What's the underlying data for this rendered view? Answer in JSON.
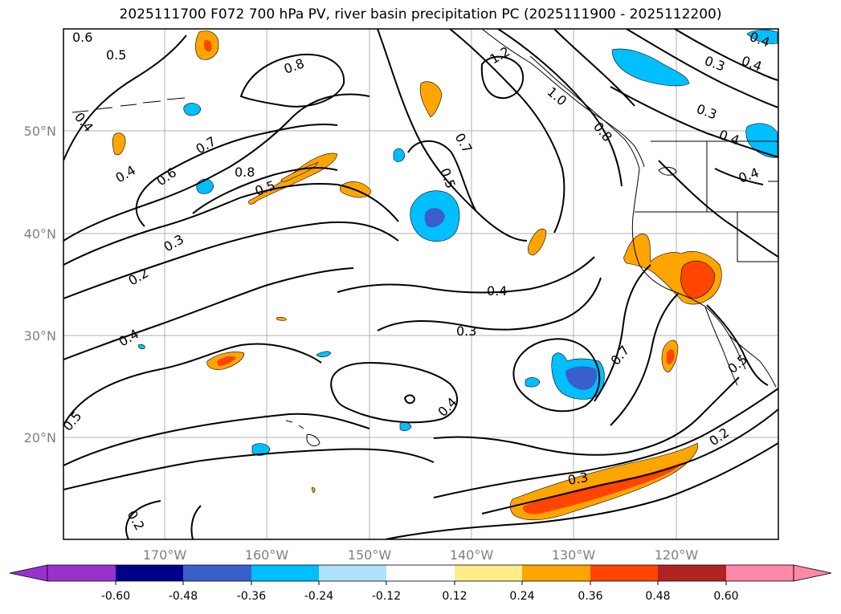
{
  "title": "2025111700 F072 700 hPa PV, river basin precipitation PC (2025111900 - 2025112200)",
  "map": {
    "lat_labels": [
      "50°N",
      "40°N",
      "30°N",
      "20°N"
    ],
    "lon_labels": [
      "170°W",
      "160°W",
      "150°W",
      "140°W",
      "130°W",
      "120°W"
    ],
    "contour_labels": [
      "0.6",
      "0.5",
      "0.4",
      "0.8",
      "1.2",
      "1.0",
      "0.7",
      "0.5",
      "0.8",
      "0.7",
      "0.6",
      "0.4",
      "0.5",
      "0.3",
      "0.2",
      "0.3",
      "0.4",
      "0.4",
      "0.3",
      "0.4",
      "0.7",
      "0.5",
      "0.4",
      "0.5",
      "0.2",
      "0.3",
      "0.2",
      "0.3",
      "0.4",
      "0.4",
      "0.4",
      "0.8"
    ]
  },
  "colorbar": {
    "ticks": [
      "-0.60",
      "-0.48",
      "-0.36",
      "-0.24",
      "-0.12",
      "0.12",
      "0.24",
      "0.36",
      "0.48",
      "0.60"
    ],
    "colors": [
      "#9932cc",
      "#00008b",
      "#3a5fcd",
      "#00bfff",
      "#b0e2ff",
      "#ffffff",
      "#ffec8b",
      "#ffa500",
      "#ff4500",
      "#b22222",
      "#ff88aa",
      "#ff88aa"
    ]
  }
}
